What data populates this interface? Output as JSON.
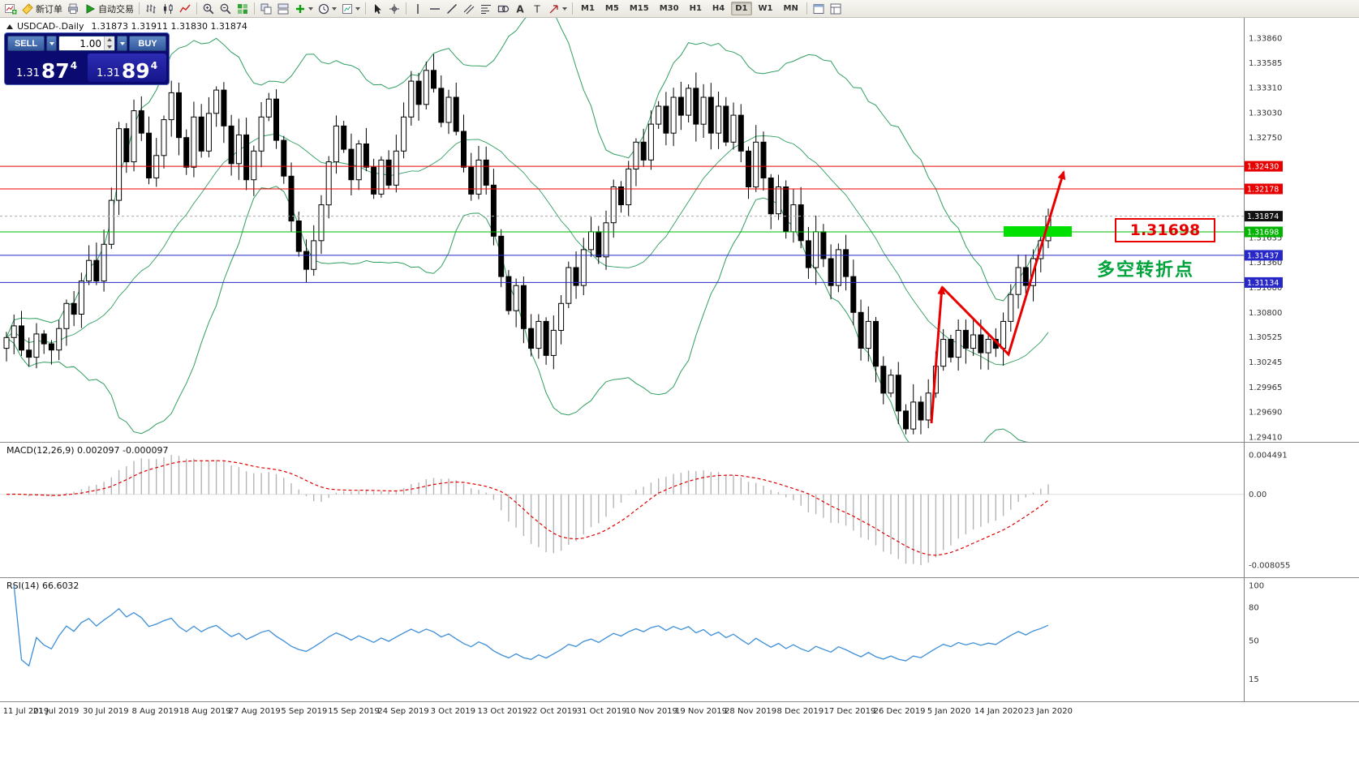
{
  "chart": {
    "symbol_title": "USDCAD-.Daily",
    "ohlc": "1.31873 1.31911 1.31830 1.31874"
  },
  "toolbar": {
    "groups": [
      {
        "name": "file",
        "items": [
          {
            "icon": "new-chart-icon"
          },
          {
            "icon": "new-order-icon",
            "label": "新订单"
          },
          {
            "icon": "print-icon"
          },
          {
            "icon": "auto-trading-icon",
            "label": "自动交易"
          }
        ]
      },
      {
        "name": "chart-type",
        "items": [
          {
            "icon": "bar-chart-icon"
          },
          {
            "icon": "candlestick-icon"
          },
          {
            "icon": "line-chart-icon"
          }
        ]
      },
      {
        "name": "zoom",
        "items": [
          {
            "icon": "zoom-in-icon"
          },
          {
            "icon": "zoom-out-icon"
          },
          {
            "icon": "tile-windows-icon"
          }
        ]
      },
      {
        "name": "manage",
        "items": [
          {
            "icon": "arrange-windows-icon"
          },
          {
            "icon": "cascade-windows-icon"
          },
          {
            "icon": "indicators-icon",
            "dropdown": true
          },
          {
            "icon": "periods-icon",
            "dropdown": true
          },
          {
            "icon": "templates-icon",
            "dropdown": true
          }
        ]
      },
      {
        "name": "cursor",
        "items": [
          {
            "icon": "cursor-icon"
          },
          {
            "icon": "crosshair-icon"
          }
        ]
      },
      {
        "name": "objects",
        "items": [
          {
            "icon": "vertical-line-icon"
          },
          {
            "icon": "horizontal-line-icon"
          },
          {
            "icon": "trendline-icon"
          },
          {
            "icon": "equidistant-channel-icon"
          },
          {
            "icon": "fibonacci-icon"
          },
          {
            "icon": "shapes-icon"
          },
          {
            "icon": "text-icon"
          },
          {
            "icon": "label-icon"
          },
          {
            "icon": "arrows-icon",
            "dropdown": true
          }
        ]
      },
      {
        "name": "timeframes",
        "timeframes": [
          "M1",
          "M5",
          "M15",
          "M30",
          "H1",
          "H4",
          "D1",
          "W1",
          "MN"
        ],
        "active": "D1"
      },
      {
        "name": "window",
        "items": [
          {
            "icon": "new-window-icon"
          },
          {
            "icon": "window-list-icon"
          }
        ]
      }
    ]
  },
  "trade_panel": {
    "sell_label": "SELL",
    "buy_label": "BUY",
    "volume": "1.00",
    "sell_price": {
      "prefix": "1.31",
      "big": "87",
      "sup": "4"
    },
    "buy_price": {
      "prefix": "1.31",
      "big": "89",
      "sup": "4"
    }
  },
  "annotations": {
    "price_box": "1.31698",
    "pivot_note": "多空转折点"
  },
  "price_axis": {
    "regular": [
      "1.33860",
      "1.33585",
      "1.33310",
      "1.33030",
      "1.32750",
      "1.31635",
      "1.31360",
      "1.31080",
      "1.30800",
      "1.30525",
      "1.30245",
      "1.29965",
      "1.29690",
      "1.29410"
    ],
    "tags": [
      {
        "text": "1.32430",
        "bg": "#e80000"
      },
      {
        "text": "1.32178",
        "bg": "#e80000"
      },
      {
        "text": "1.31874",
        "bg": "#111111"
      },
      {
        "text": "1.31698",
        "bg": "#00b400"
      },
      {
        "text": "1.31437",
        "bg": "#2828c8"
      },
      {
        "text": "1.31134",
        "bg": "#2828c8"
      }
    ]
  },
  "macd": {
    "display": "MACD(12,26,9) 0.002097 -0.000097",
    "axis_labels": [
      {
        "text": "0.004491",
        "value": 0.004491
      },
      {
        "text": "0.00",
        "value": 0
      },
      {
        "text": "-0.008055",
        "value": -0.008055
      }
    ]
  },
  "rsi": {
    "display": "RSI(14) 66.6032",
    "axis": [
      100,
      80,
      50,
      15
    ]
  },
  "date_axis": [
    "11 Jul 2019",
    "21 Jul 2019",
    "30 Jul 2019",
    "8 Aug 2019",
    "18 Aug 2019",
    "27 Aug 2019",
    "5 Sep 2019",
    "15 Sep 2019",
    "24 Sep 2019",
    "3 Oct 2019",
    "13 Oct 2019",
    "22 Oct 2019",
    "31 Oct 2019",
    "10 Nov 2019",
    "19 Nov 2019",
    "28 Nov 2019",
    "8 Dec 2019",
    "17 Dec 2019",
    "26 Dec 2019",
    "5 Jan 2020",
    "14 Jan 2020",
    "23 Jan 2020"
  ],
  "chart_data": {
    "type": "candlestick",
    "symbol": "USDCAD",
    "timeframe": "Daily",
    "ohlc_display": {
      "open": "1.31873",
      "high": "1.31911",
      "low": "1.31830",
      "close": "1.31874"
    },
    "price_axis": {
      "min": 1.2941,
      "max": 1.3386
    },
    "first_open": 1.304,
    "closes": [
      1.3052,
      1.3065,
      1.3038,
      1.303,
      1.3056,
      1.3045,
      1.3038,
      1.3062,
      1.309,
      1.3078,
      1.3115,
      1.3138,
      1.3115,
      1.3156,
      1.3205,
      1.3285,
      1.3248,
      1.3305,
      1.328,
      1.323,
      1.3255,
      1.3295,
      1.3325,
      1.3275,
      1.3242,
      1.3298,
      1.326,
      1.3302,
      1.3328,
      1.3288,
      1.3246,
      1.3278,
      1.3228,
      1.326,
      1.3298,
      1.3318,
      1.3272,
      1.3232,
      1.3182,
      1.3148,
      1.3128,
      1.316,
      1.32,
      1.3248,
      1.3288,
      1.3262,
      1.3228,
      1.3268,
      1.3242,
      1.3212,
      1.325,
      1.3222,
      1.326,
      1.3298,
      1.3338,
      1.3312,
      1.335,
      1.333,
      1.3292,
      1.332,
      1.3282,
      1.3242,
      1.3212,
      1.325,
      1.3222,
      1.3165,
      1.312,
      1.3082,
      1.311,
      1.3062,
      1.304,
      1.307,
      1.3032,
      1.306,
      1.309,
      1.313,
      1.311,
      1.315,
      1.317,
      1.3142,
      1.318,
      1.322,
      1.32,
      1.324,
      1.327,
      1.325,
      1.329,
      1.331,
      1.328,
      1.332,
      1.33,
      1.333,
      1.329,
      1.332,
      1.328,
      1.331,
      1.327,
      1.33,
      1.326,
      1.322,
      1.327,
      1.323,
      1.319,
      1.322,
      1.317,
      1.32,
      1.316,
      1.313,
      1.317,
      1.314,
      1.311,
      1.315,
      1.312,
      1.308,
      1.304,
      1.307,
      1.302,
      1.299,
      1.301,
      1.297,
      1.295,
      1.298,
      1.296,
      1.299,
      1.302,
      1.305,
      1.303,
      1.306,
      1.304,
      1.3055,
      1.3035,
      1.305,
      1.304,
      1.307,
      1.31,
      1.313,
      1.311,
      1.314,
      1.316,
      1.31874
    ],
    "bollinger": {
      "period": 20,
      "deviation": 2
    },
    "levels": {
      "resistance": [
        1.3243,
        1.32178
      ],
      "pivot_green": 1.31698,
      "support": [
        1.31437,
        1.31134
      ],
      "current": 1.31874
    },
    "macd": {
      "fast": 12,
      "slow": 26,
      "signal": 9,
      "axis_max": 0.004491,
      "axis_min": -0.008055,
      "main": 0.002097,
      "signal_value": -9.7e-05
    },
    "rsi": {
      "period": 14,
      "value": 66.6032
    }
  }
}
